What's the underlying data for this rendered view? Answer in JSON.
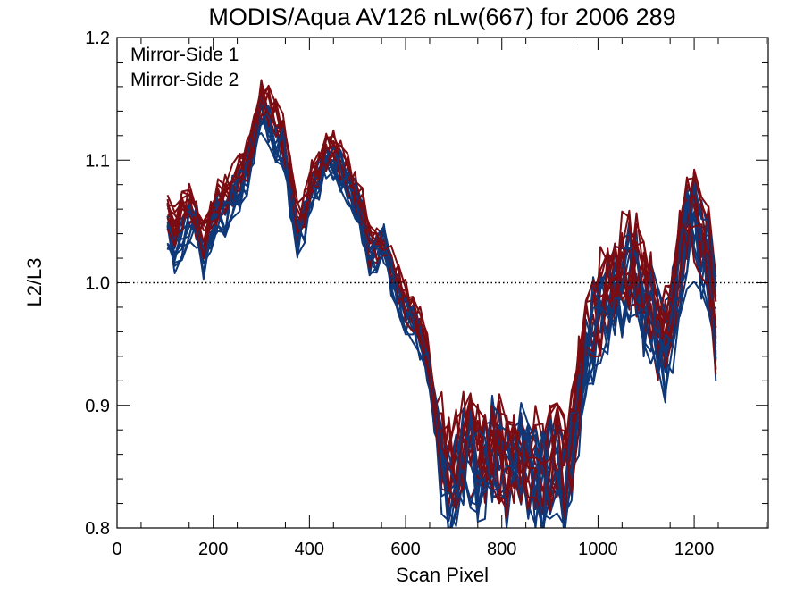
{
  "chart_data": {
    "type": "line",
    "title": "MODIS/Aqua AV126 nLw(667) for 2006 289",
    "xlabel": "Scan Pixel",
    "ylabel": "L2/L3",
    "xlim": [
      0,
      1354
    ],
    "ylim": [
      0.8,
      1.2
    ],
    "x_ticks": [
      0,
      200,
      400,
      600,
      800,
      1000,
      1200
    ],
    "x_tick_labels": [
      "0",
      "200",
      "400",
      "600",
      "800",
      "1000",
      "1200"
    ],
    "y_ticks": [
      0.8,
      0.9,
      1.0,
      1.1,
      1.2
    ],
    "y_tick_labels": [
      "0.8",
      "0.9",
      "1.0",
      "1.1",
      "1.2"
    ],
    "reference_line": 1.0,
    "legend_position": "top-left",
    "x": [
      105,
      120,
      135,
      150,
      165,
      180,
      195,
      210,
      225,
      240,
      255,
      270,
      285,
      300,
      315,
      330,
      345,
      360,
      375,
      390,
      405,
      420,
      435,
      450,
      465,
      480,
      495,
      510,
      525,
      540,
      555,
      570,
      585,
      600,
      615,
      630,
      645,
      660,
      675,
      690,
      705,
      720,
      735,
      750,
      765,
      780,
      795,
      810,
      825,
      840,
      855,
      870,
      885,
      900,
      915,
      930,
      945,
      960,
      975,
      990,
      1005,
      1020,
      1035,
      1050,
      1065,
      1080,
      1095,
      1110,
      1125,
      1140,
      1155,
      1170,
      1185,
      1200,
      1215,
      1230,
      1245
    ],
    "series": [
      {
        "name": "Mirror-Side 1",
        "color": "#0f3878",
        "values": [
          1.04,
          1.025,
          1.035,
          1.05,
          1.045,
          1.02,
          1.04,
          1.06,
          1.055,
          1.07,
          1.075,
          1.085,
          1.11,
          1.14,
          1.13,
          1.115,
          1.11,
          1.07,
          1.035,
          1.05,
          1.075,
          1.085,
          1.095,
          1.1,
          1.09,
          1.08,
          1.07,
          1.05,
          1.02,
          1.025,
          1.03,
          1.005,
          0.99,
          0.975,
          0.965,
          0.955,
          0.935,
          0.895,
          0.855,
          0.835,
          0.845,
          0.86,
          0.855,
          0.845,
          0.85,
          0.865,
          0.855,
          0.835,
          0.845,
          0.86,
          0.85,
          0.84,
          0.835,
          0.845,
          0.85,
          0.835,
          0.86,
          0.9,
          0.95,
          0.96,
          0.97,
          0.975,
          0.985,
          1.0,
          1.01,
          1.005,
          0.98,
          0.975,
          0.955,
          0.945,
          0.97,
          1.01,
          1.035,
          1.04,
          1.03,
          1.01,
          0.955
        ]
      },
      {
        "name": "Mirror-Side 2",
        "color": "#7a0c12",
        "values": [
          1.055,
          1.045,
          1.06,
          1.065,
          1.05,
          1.035,
          1.05,
          1.07,
          1.075,
          1.08,
          1.09,
          1.1,
          1.12,
          1.15,
          1.145,
          1.135,
          1.12,
          1.085,
          1.05,
          1.06,
          1.085,
          1.095,
          1.105,
          1.11,
          1.1,
          1.09,
          1.075,
          1.06,
          1.03,
          1.03,
          1.035,
          1.015,
          1.0,
          0.985,
          0.975,
          0.965,
          0.945,
          0.905,
          0.87,
          0.85,
          0.86,
          0.87,
          0.865,
          0.86,
          0.86,
          0.87,
          0.865,
          0.85,
          0.855,
          0.865,
          0.86,
          0.855,
          0.845,
          0.855,
          0.86,
          0.85,
          0.87,
          0.915,
          0.96,
          0.975,
          0.985,
          0.99,
          1.0,
          1.015,
          1.02,
          1.015,
          0.995,
          0.985,
          0.965,
          0.955,
          0.98,
          1.02,
          1.045,
          1.05,
          1.04,
          1.02,
          0.965
        ]
      }
    ]
  }
}
